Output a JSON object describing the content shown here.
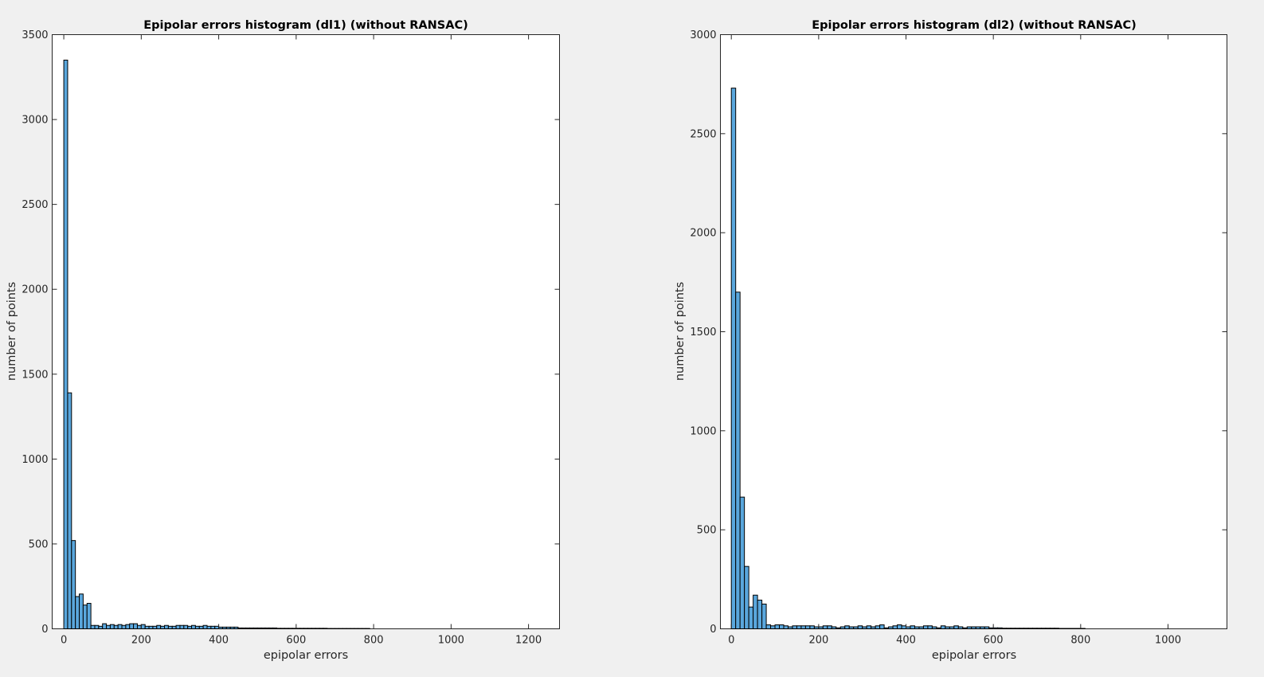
{
  "chart_data": [
    {
      "type": "bar",
      "title": "Epipolar errors histogram (dl1) (without RANSAC)",
      "xlabel": "epipolar errors",
      "ylabel": "number of points",
      "xlim": [
        -30,
        1280
      ],
      "ylim": [
        0,
        3500
      ],
      "xticks": [
        0,
        200,
        400,
        600,
        800,
        1000,
        1200
      ],
      "yticks": [
        0,
        500,
        1000,
        1500,
        2000,
        2500,
        3000,
        3500
      ],
      "bin_width": 10,
      "bin_starts": [
        0,
        10,
        20,
        30,
        40,
        50,
        60,
        70,
        80,
        90,
        100,
        110,
        120,
        130,
        140,
        150,
        160,
        170,
        180,
        190,
        200,
        210,
        220,
        230,
        240,
        250,
        260,
        270,
        280,
        290,
        300,
        310,
        320,
        330,
        340,
        350,
        360,
        370,
        380,
        390,
        400,
        410,
        420,
        430,
        440,
        450,
        460,
        470,
        480,
        490,
        500,
        510,
        520,
        530,
        540,
        550,
        560,
        570,
        580,
        590,
        600,
        610,
        620,
        630,
        640,
        650,
        660,
        670,
        680,
        690,
        700,
        710,
        720,
        730,
        740,
        750,
        760,
        770,
        780
      ],
      "values": [
        3350,
        1390,
        520,
        190,
        205,
        140,
        150,
        20,
        20,
        15,
        30,
        20,
        25,
        20,
        25,
        20,
        25,
        30,
        30,
        20,
        25,
        15,
        15,
        15,
        20,
        15,
        20,
        15,
        15,
        20,
        20,
        20,
        15,
        20,
        15,
        15,
        20,
        15,
        15,
        15,
        10,
        10,
        10,
        10,
        10,
        5,
        5,
        5,
        5,
        5,
        5,
        5,
        5,
        5,
        5,
        3,
        3,
        3,
        3,
        3,
        3,
        3,
        3,
        3,
        3,
        3,
        3,
        3,
        2,
        2,
        2,
        2,
        2,
        2,
        2,
        2,
        2,
        2,
        2
      ]
    },
    {
      "type": "bar",
      "title": "Epipolar errors histogram (dl2) (without RANSAC)",
      "xlabel": "epipolar errors",
      "ylabel": "number of points",
      "xlim": [
        -25,
        1135
      ],
      "ylim": [
        0,
        3000
      ],
      "xticks": [
        0,
        200,
        400,
        600,
        800,
        1000
      ],
      "yticks": [
        0,
        500,
        1000,
        1500,
        2000,
        2500,
        3000
      ],
      "bin_width": 10,
      "bin_starts": [
        0,
        10,
        20,
        30,
        40,
        50,
        60,
        70,
        80,
        90,
        100,
        110,
        120,
        130,
        140,
        150,
        160,
        170,
        180,
        190,
        200,
        210,
        220,
        230,
        240,
        250,
        260,
        270,
        280,
        290,
        300,
        310,
        320,
        330,
        340,
        350,
        360,
        370,
        380,
        390,
        400,
        410,
        420,
        430,
        440,
        450,
        460,
        470,
        480,
        490,
        500,
        510,
        520,
        530,
        540,
        550,
        560,
        570,
        580,
        590,
        600,
        610,
        620,
        630,
        640,
        650,
        660,
        670,
        680,
        690,
        700,
        710,
        720,
        730,
        740,
        750,
        760,
        770,
        780,
        790,
        800
      ],
      "values": [
        2730,
        1700,
        665,
        315,
        110,
        170,
        145,
        125,
        20,
        15,
        20,
        20,
        15,
        10,
        15,
        15,
        15,
        15,
        15,
        10,
        10,
        15,
        15,
        10,
        5,
        10,
        15,
        10,
        10,
        15,
        10,
        15,
        10,
        15,
        20,
        5,
        10,
        15,
        20,
        15,
        10,
        15,
        10,
        10,
        15,
        15,
        10,
        5,
        15,
        10,
        10,
        15,
        10,
        5,
        10,
        10,
        10,
        10,
        10,
        5,
        5,
        5,
        3,
        3,
        3,
        3,
        3,
        3,
        3,
        3,
        3,
        3,
        3,
        3,
        3,
        2,
        2,
        2,
        2,
        2,
        2
      ]
    }
  ]
}
